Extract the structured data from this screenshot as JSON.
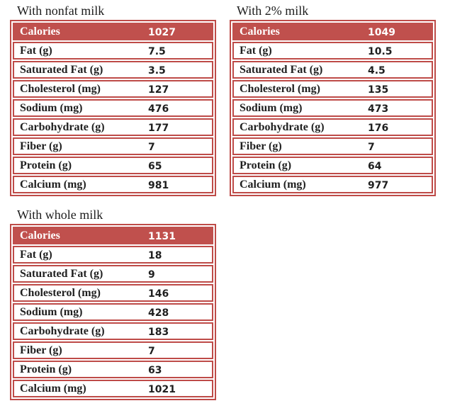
{
  "colors": {
    "accent_red_fill": "#C0504D",
    "accent_red_border": "#BE4B48",
    "header_text": "#FFFFFF",
    "body_text": "#1F1F1F"
  },
  "tables": [
    {
      "title": "With nonfat milk",
      "header": {
        "label": "Calories",
        "value": "1027"
      },
      "rows": [
        {
          "label": "Fat (g)",
          "value": "7.5"
        },
        {
          "label": "Saturated Fat (g)",
          "value": "3.5"
        },
        {
          "label": "Cholesterol (mg)",
          "value": "127"
        },
        {
          "label": "Sodium (mg)",
          "value": "476"
        },
        {
          "label": "Carbohydrate (g)",
          "value": "177"
        },
        {
          "label": "Fiber (g)",
          "value": "7"
        },
        {
          "label": "Protein (g)",
          "value": "65"
        },
        {
          "label": "Calcium (mg)",
          "value": "981"
        }
      ]
    },
    {
      "title": "With 2% milk",
      "header": {
        "label": "Calories",
        "value": "1049"
      },
      "rows": [
        {
          "label": "Fat (g)",
          "value": "10.5"
        },
        {
          "label": "Saturated Fat (g)",
          "value": "4.5"
        },
        {
          "label": "Cholesterol (mg)",
          "value": "135"
        },
        {
          "label": "Sodium (mg)",
          "value": "473"
        },
        {
          "label": "Carbohydrate (g)",
          "value": "176"
        },
        {
          "label": "Fiber (g)",
          "value": "7"
        },
        {
          "label": "Protein (g)",
          "value": "64"
        },
        {
          "label": "Calcium (mg)",
          "value": "977"
        }
      ]
    },
    {
      "title": "With whole milk",
      "header": {
        "label": "Calories",
        "value": "1131"
      },
      "rows": [
        {
          "label": "Fat (g)",
          "value": "18"
        },
        {
          "label": "Saturated Fat (g)",
          "value": "9"
        },
        {
          "label": "Cholesterol (mg)",
          "value": "146"
        },
        {
          "label": "Sodium (mg)",
          "value": "428"
        },
        {
          "label": "Carbohydrate (g)",
          "value": "183"
        },
        {
          "label": "Fiber (g)",
          "value": "7"
        },
        {
          "label": "Protein (g)",
          "value": "63"
        },
        {
          "label": "Calcium (mg)",
          "value": "1021"
        }
      ]
    }
  ]
}
